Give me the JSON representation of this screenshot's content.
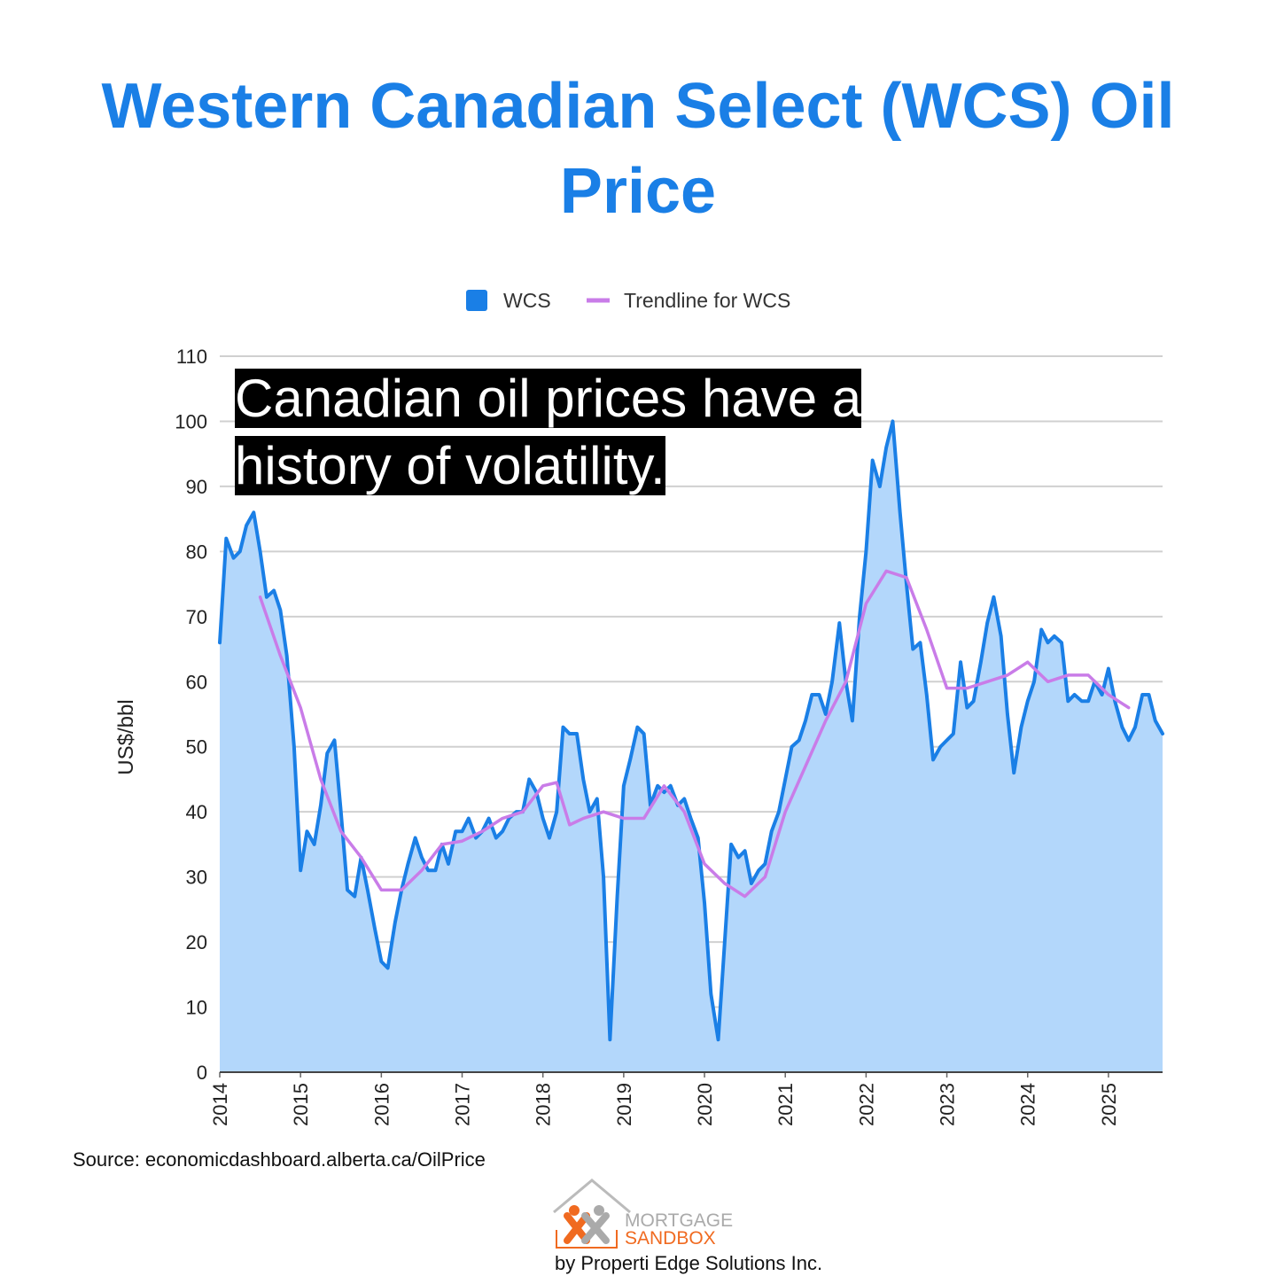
{
  "chart_data": {
    "type": "area",
    "title": "Western Canadian Select (WCS) Oil Price",
    "annotation": "Canadian oil prices have a history of volatility.",
    "y_label": "US$/bbl",
    "source": "Source: economicdashboard.alberta.ca/OilPrice",
    "logo": {
      "line1": "MORTGAGE",
      "line2": "SANDBOX",
      "byline": "by Properti Edge Solutions Inc."
    },
    "xlim": [
      2014,
      2025.67
    ],
    "xticks": [
      2014,
      2015,
      2016,
      2017,
      2018,
      2019,
      2020,
      2021,
      2022,
      2023,
      2024,
      2025
    ],
    "ylim": [
      0,
      110
    ],
    "yticks": [
      0,
      10,
      20,
      30,
      40,
      50,
      60,
      70,
      80,
      90,
      100,
      110
    ],
    "grid": true,
    "legend": "top",
    "series": [
      {
        "name": "WCS",
        "color": "#1a7fe6",
        "fill": "#b3d7fb",
        "x": [
          2014.0,
          2014.08,
          2014.17,
          2014.25,
          2014.33,
          2014.42,
          2014.5,
          2014.58,
          2014.67,
          2014.75,
          2014.83,
          2014.92,
          2015.0,
          2015.08,
          2015.17,
          2015.25,
          2015.33,
          2015.42,
          2015.5,
          2015.58,
          2015.67,
          2015.75,
          2015.83,
          2015.92,
          2016.0,
          2016.08,
          2016.17,
          2016.25,
          2016.33,
          2016.42,
          2016.5,
          2016.58,
          2016.67,
          2016.75,
          2016.83,
          2016.92,
          2017.0,
          2017.08,
          2017.17,
          2017.25,
          2017.33,
          2017.42,
          2017.5,
          2017.58,
          2017.67,
          2017.75,
          2017.83,
          2017.92,
          2018.0,
          2018.08,
          2018.17,
          2018.25,
          2018.33,
          2018.42,
          2018.5,
          2018.58,
          2018.67,
          2018.75,
          2018.83,
          2018.92,
          2019.0,
          2019.08,
          2019.17,
          2019.25,
          2019.33,
          2019.42,
          2019.5,
          2019.58,
          2019.67,
          2019.75,
          2019.83,
          2019.92,
          2020.0,
          2020.08,
          2020.17,
          2020.25,
          2020.33,
          2020.42,
          2020.5,
          2020.58,
          2020.67,
          2020.75,
          2020.83,
          2020.92,
          2021.0,
          2021.08,
          2021.17,
          2021.25,
          2021.33,
          2021.42,
          2021.5,
          2021.58,
          2021.67,
          2021.75,
          2021.83,
          2021.92,
          2022.0,
          2022.08,
          2022.17,
          2022.25,
          2022.33,
          2022.42,
          2022.5,
          2022.58,
          2022.67,
          2022.75,
          2022.83,
          2022.92,
          2023.0,
          2023.08,
          2023.17,
          2023.25,
          2023.33,
          2023.42,
          2023.5,
          2023.58,
          2023.67,
          2023.75,
          2023.83,
          2023.92,
          2024.0,
          2024.08,
          2024.17,
          2024.25,
          2024.33,
          2024.42,
          2024.5,
          2024.58,
          2024.67,
          2024.75,
          2024.83,
          2024.92,
          2025.0,
          2025.08,
          2025.17,
          2025.25,
          2025.33,
          2025.42,
          2025.5,
          2025.58,
          2025.67
        ],
        "values": [
          66,
          82,
          79,
          80,
          84,
          86,
          80,
          73,
          74,
          71,
          64,
          50,
          31,
          37,
          35,
          41,
          49,
          51,
          40,
          28,
          27,
          33,
          28,
          22,
          17,
          16,
          23,
          28,
          32,
          36,
          33,
          31,
          31,
          35,
          32,
          37,
          37,
          39,
          36,
          37,
          39,
          36,
          37,
          39,
          40,
          40,
          45,
          43,
          39,
          36,
          40,
          53,
          52,
          52,
          45,
          40,
          42,
          30,
          5,
          27,
          44,
          48,
          53,
          52,
          41,
          44,
          43,
          44,
          41,
          42,
          39,
          36,
          26,
          12,
          5,
          20,
          35,
          33,
          34,
          29,
          31,
          32,
          37,
          40,
          45,
          50,
          51,
          54,
          58,
          58,
          55,
          60,
          69,
          60,
          54,
          70,
          80,
          94,
          90,
          96,
          100,
          86,
          75,
          65,
          66,
          58,
          48,
          50,
          51,
          52,
          63,
          56,
          57,
          63,
          69,
          73,
          67,
          55,
          46,
          53,
          57,
          60,
          68,
          66,
          67,
          66,
          57,
          58,
          57,
          57,
          60,
          58,
          62,
          57,
          53,
          51,
          53,
          58,
          58,
          54,
          52
        ]
      },
      {
        "name": "Trendline for WCS",
        "color": "#c97ce8",
        "x": [
          2014.5,
          2014.75,
          2015.0,
          2015.25,
          2015.5,
          2015.75,
          2016.0,
          2016.25,
          2016.5,
          2016.75,
          2017.0,
          2017.25,
          2017.5,
          2017.75,
          2018.0,
          2018.17,
          2018.33,
          2018.5,
          2018.75,
          2019.0,
          2019.25,
          2019.5,
          2019.75,
          2020.0,
          2020.25,
          2020.5,
          2020.75,
          2021.0,
          2021.25,
          2021.5,
          2021.75,
          2022.0,
          2022.25,
          2022.5,
          2022.75,
          2023.0,
          2023.25,
          2023.5,
          2023.75,
          2024.0,
          2024.25,
          2024.5,
          2024.75,
          2025.0,
          2025.25
        ],
        "values": [
          73,
          64,
          56,
          45,
          37,
          33,
          28,
          28,
          31,
          35,
          35.5,
          37,
          39,
          40,
          44,
          44.5,
          38,
          39,
          40,
          39,
          39,
          44,
          40,
          32,
          29,
          27,
          30,
          40,
          47,
          54,
          60,
          72,
          77,
          76,
          68,
          59,
          59,
          60,
          61,
          63,
          60,
          61,
          61,
          58,
          56
        ]
      }
    ]
  }
}
